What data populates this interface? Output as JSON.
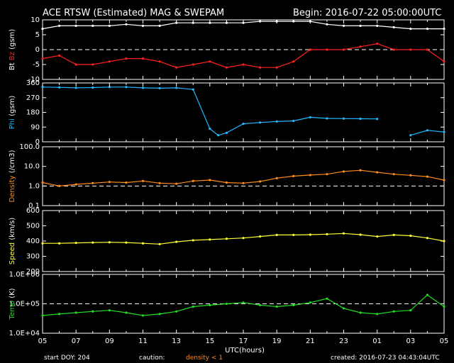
{
  "header": {
    "title": "ACE RTSW (Estimated) MAG & SWEPAM",
    "begin": "Begin: 2016-07-22 05:00:00UTC"
  },
  "footer": {
    "start_doy": "start DOY: 204",
    "caution": "caution:",
    "density_note": "density < 1",
    "created": "created: 2016-07-23 04:43:04UTC",
    "xlabel": "UTC(hours)"
  },
  "colors": {
    "bt": "#ffffff",
    "bz": "#ff2020",
    "phi": "#20b8ff",
    "density": "#ff8c1a",
    "speed": "#ffff33",
    "temp": "#22dd22",
    "axes": "#ffffff",
    "background": "#000000"
  },
  "x_ticks": [
    "05",
    "07",
    "09",
    "11",
    "13",
    "15",
    "17",
    "19",
    "21",
    "23",
    "01",
    "03",
    "05"
  ],
  "chart_data": [
    {
      "type": "scatter",
      "ylabel_parts": [
        "Bt",
        "Bz",
        "(gsm)"
      ],
      "ylim": [
        -10,
        10
      ],
      "ytick_labels": [
        "10",
        "5",
        "0",
        "-5",
        "-10"
      ],
      "dashed_at": [
        0
      ],
      "series": [
        {
          "name": "Bt",
          "color": "#ffffff",
          "x": [
            0,
            1,
            2,
            3,
            4,
            5,
            6,
            7,
            8,
            9,
            10,
            11,
            12,
            13,
            14,
            15,
            16,
            17,
            18,
            19,
            20,
            21,
            22,
            23,
            24
          ],
          "y": [
            7,
            8,
            8,
            8,
            8,
            8.5,
            8,
            8,
            9,
            9,
            9,
            9,
            9,
            9.5,
            9.5,
            9.5,
            9.5,
            8.5,
            8,
            8,
            8,
            7.5,
            7,
            7,
            7
          ]
        },
        {
          "name": "Bz",
          "color": "#ff2020",
          "x": [
            0,
            1,
            2,
            3,
            4,
            5,
            6,
            7,
            8,
            9,
            10,
            11,
            12,
            13,
            14,
            15,
            16,
            17,
            18,
            19,
            20,
            21,
            22,
            23,
            24
          ],
          "y": [
            -3,
            -2,
            -5,
            -5,
            -4,
            -3,
            -3,
            -4,
            -6,
            -5,
            -4,
            -6,
            -5,
            -6,
            -6,
            -4,
            0,
            0,
            0,
            1,
            2,
            0,
            0,
            0,
            -4
          ]
        }
      ]
    },
    {
      "type": "scatter",
      "ylabel_parts": [
        "Phi",
        "(gsm)"
      ],
      "ylim": [
        0,
        360
      ],
      "ytick_labels": [
        "360",
        "270",
        "180",
        "90",
        "0"
      ],
      "dashed_at": [],
      "series": [
        {
          "name": "Phi",
          "color": "#20b8ff",
          "x": [
            0,
            1,
            2,
            3,
            4,
            5,
            6,
            7,
            8,
            9,
            10,
            10.5,
            11,
            12,
            13,
            14,
            15,
            16,
            17,
            18,
            19,
            20,
            21,
            22,
            23,
            24
          ],
          "y": [
            335,
            333,
            330,
            332,
            335,
            335,
            330,
            328,
            330,
            320,
            80,
            40,
            55,
            110,
            118,
            124,
            128,
            150,
            143,
            142,
            141,
            140,
            null,
            40,
            70,
            60
          ]
        }
      ]
    },
    {
      "type": "scatter",
      "ylabel_parts": [
        "Density",
        "(/cm3)"
      ],
      "ylim": [
        0.1,
        100
      ],
      "yscale": "log",
      "ytick_labels": [
        "100.0",
        "10.0",
        "1.0",
        "0.1"
      ],
      "dashed_at": [
        1
      ],
      "series": [
        {
          "name": "Density",
          "color": "#ff8c1a",
          "x": [
            0,
            1,
            2,
            3,
            4,
            5,
            6,
            7,
            8,
            9,
            10,
            11,
            12,
            13,
            14,
            15,
            16,
            17,
            18,
            19,
            20,
            21,
            22,
            23,
            24
          ],
          "y": [
            1.5,
            1.0,
            1.2,
            1.4,
            1.6,
            1.5,
            1.8,
            1.4,
            1.3,
            1.8,
            2.0,
            1.5,
            1.4,
            1.7,
            2.5,
            3.2,
            3.6,
            4.0,
            5.5,
            6.3,
            5.0,
            4.0,
            3.5,
            3.0,
            2.0
          ]
        }
      ]
    },
    {
      "type": "scatter",
      "ylabel_parts": [
        "Speed",
        "(km/s)"
      ],
      "ylim": [
        200,
        600
      ],
      "ytick_labels": [
        "600",
        "500",
        "400",
        "300",
        "200"
      ],
      "dashed_at": [],
      "series": [
        {
          "name": "Speed",
          "color": "#ffff33",
          "x": [
            0,
            1,
            2,
            3,
            4,
            5,
            6,
            7,
            8,
            9,
            10,
            11,
            12,
            13,
            14,
            15,
            16,
            17,
            18,
            19,
            20,
            21,
            22,
            23,
            24
          ],
          "y": [
            385,
            385,
            388,
            390,
            392,
            390,
            385,
            380,
            395,
            405,
            410,
            415,
            420,
            430,
            440,
            440,
            442,
            445,
            450,
            442,
            430,
            440,
            435,
            420,
            400
          ]
        }
      ]
    },
    {
      "type": "scatter",
      "ylabel_parts": [
        "Temp",
        "(K)"
      ],
      "ylim": [
        10000,
        1000000
      ],
      "yscale": "log",
      "ytick_labels": [
        "1.0E+06",
        "1.0E+05",
        "1.0E+04"
      ],
      "dashed_at": [
        100000
      ],
      "series": [
        {
          "name": "Temp",
          "color": "#22dd22",
          "x": [
            0,
            1,
            2,
            3,
            4,
            5,
            6,
            7,
            8,
            9,
            10,
            11,
            12,
            13,
            14,
            15,
            16,
            17,
            18,
            19,
            20,
            21,
            22,
            23,
            24
          ],
          "y": [
            40000,
            45000,
            50000,
            55000,
            60000,
            50000,
            40000,
            45000,
            55000,
            80000,
            90000,
            100000,
            110000,
            90000,
            80000,
            90000,
            110000,
            150000,
            70000,
            50000,
            45000,
            55000,
            60000,
            200000,
            80000
          ]
        }
      ]
    }
  ]
}
